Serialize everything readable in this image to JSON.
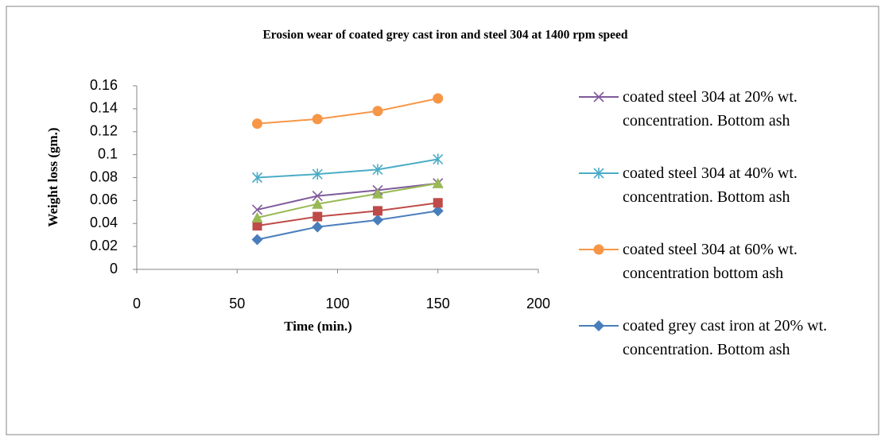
{
  "chart_data": {
    "type": "line",
    "title": "Erosion wear of coated grey cast iron and steel 304 at 1400 rpm speed",
    "x_label": "Time (min.)",
    "y_label": "Weight loss (gm.)",
    "x": [
      60,
      90,
      120,
      150
    ],
    "xlim": [
      0,
      200
    ],
    "xticks": [
      0,
      50,
      100,
      150,
      200
    ],
    "ylim": [
      0,
      0.16
    ],
    "yticks": [
      0,
      0.02,
      0.04,
      0.06,
      0.08,
      0.1,
      0.12,
      0.14,
      0.16
    ],
    "grid": false,
    "legend": "right",
    "series": [
      {
        "name": "coated steel 304 at 20% wt. concentration. Bottom ash",
        "color": "#7e5a9b",
        "marker": "x",
        "values": [
          0.052,
          0.064,
          0.069,
          0.075
        ]
      },
      {
        "name": "coated steel 304 at 40% wt. concentration. Bottom ash",
        "color": "#4bacc6",
        "marker": "star",
        "values": [
          0.08,
          0.083,
          0.087,
          0.096
        ]
      },
      {
        "name": "coated steel 304 at 60% wt. concentration bottom ash",
        "color": "#f79646",
        "marker": "circle",
        "values": [
          0.127,
          0.131,
          0.138,
          0.149
        ]
      },
      {
        "name": "coated grey cast iron at 20% wt. concentration. Bottom ash",
        "color": "#4a7ebb",
        "marker": "diamond",
        "values": [
          0.026,
          0.037,
          0.043,
          0.051
        ]
      },
      {
        "color": "#be4b48",
        "marker": "square",
        "values": [
          0.038,
          0.046,
          0.051,
          0.058
        ]
      },
      {
        "color": "#98b954",
        "marker": "triangle",
        "values": [
          0.045,
          0.057,
          0.066,
          0.075
        ]
      }
    ]
  }
}
